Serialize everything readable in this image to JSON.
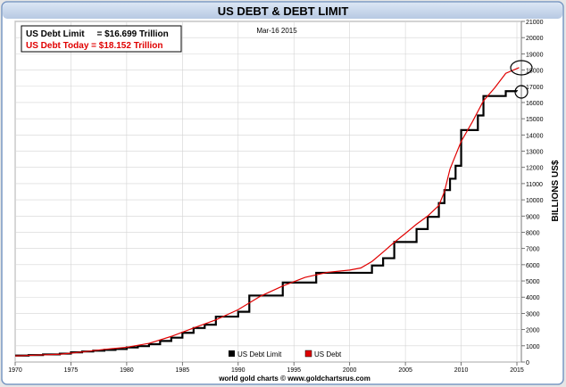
{
  "chart_data": {
    "type": "line",
    "title": "US DEBT & DEBT LIMIT",
    "date_label": "Mar-16  2015",
    "xlabel": "",
    "ylabel": "BILLIONS US$",
    "xlim": [
      1970,
      2015.4
    ],
    "ylim": [
      0,
      21000
    ],
    "x_ticks": [
      1970,
      1975,
      1980,
      1985,
      1990,
      1995,
      2000,
      2005,
      2010,
      2015
    ],
    "y_ticks": [
      0,
      1000,
      2000,
      3000,
      4000,
      5000,
      6000,
      7000,
      8000,
      9000,
      10000,
      11000,
      12000,
      13000,
      14000,
      15000,
      16000,
      17000,
      18000,
      19000,
      20000,
      21000
    ],
    "info_box": {
      "line1": "US Debt Limit     = $16.699 Trillion",
      "line2": "US Debt Today = $18.152 Trillion"
    },
    "colors": {
      "debt_limit": "#000000",
      "debt": "#e00000",
      "frame": "#5a7fb0",
      "title_bg": "#c6d6ec"
    },
    "legend_position": "bottom-center",
    "credit": "world gold charts © www.goldchartsrus.com",
    "series": [
      {
        "name": "US Debt Limit",
        "step": true,
        "x": [
          1970,
          1971.2,
          1972.5,
          1974,
          1975,
          1976,
          1977,
          1978,
          1979,
          1980,
          1981,
          1982,
          1983,
          1984,
          1985,
          1986,
          1987,
          1988,
          1989,
          1990,
          1991,
          1993,
          1994,
          1996,
          1997,
          2002,
          2003,
          2004,
          2005,
          2006,
          2007,
          2008,
          2008.5,
          2009,
          2009.5,
          2010,
          2011,
          2011.5,
          2012,
          2013,
          2014,
          2015
        ],
        "y": [
          400,
          430,
          470,
          520,
          600,
          650,
          700,
          750,
          800,
          900,
          980,
          1100,
          1300,
          1500,
          1800,
          2100,
          2300,
          2800,
          2800,
          3100,
          4100,
          4100,
          4900,
          4900,
          5500,
          5950,
          6400,
          7400,
          7400,
          8200,
          8950,
          9800,
          10600,
          11300,
          12100,
          14300,
          14300,
          15200,
          16400,
          16400,
          16700,
          16699
        ]
      },
      {
        "name": "US Debt",
        "x": [
          1970,
          1972,
          1974,
          1976,
          1978,
          1980,
          1982,
          1984,
          1986,
          1988,
          1990,
          1992,
          1994,
          1996,
          1998,
          2000,
          2001,
          2002,
          2003,
          2004,
          2005,
          2006,
          2007,
          2008,
          2008.5,
          2009,
          2010,
          2011,
          2012,
          2013,
          2014,
          2015.2
        ],
        "y": [
          380,
          430,
          480,
          620,
          780,
          910,
          1150,
          1580,
          2100,
          2600,
          3230,
          4060,
          4690,
          5220,
          5530,
          5670,
          5800,
          6200,
          6780,
          7380,
          7930,
          8500,
          9000,
          9650,
          10500,
          11900,
          13600,
          14800,
          16100,
          16900,
          17800,
          18152
        ]
      }
    ]
  }
}
